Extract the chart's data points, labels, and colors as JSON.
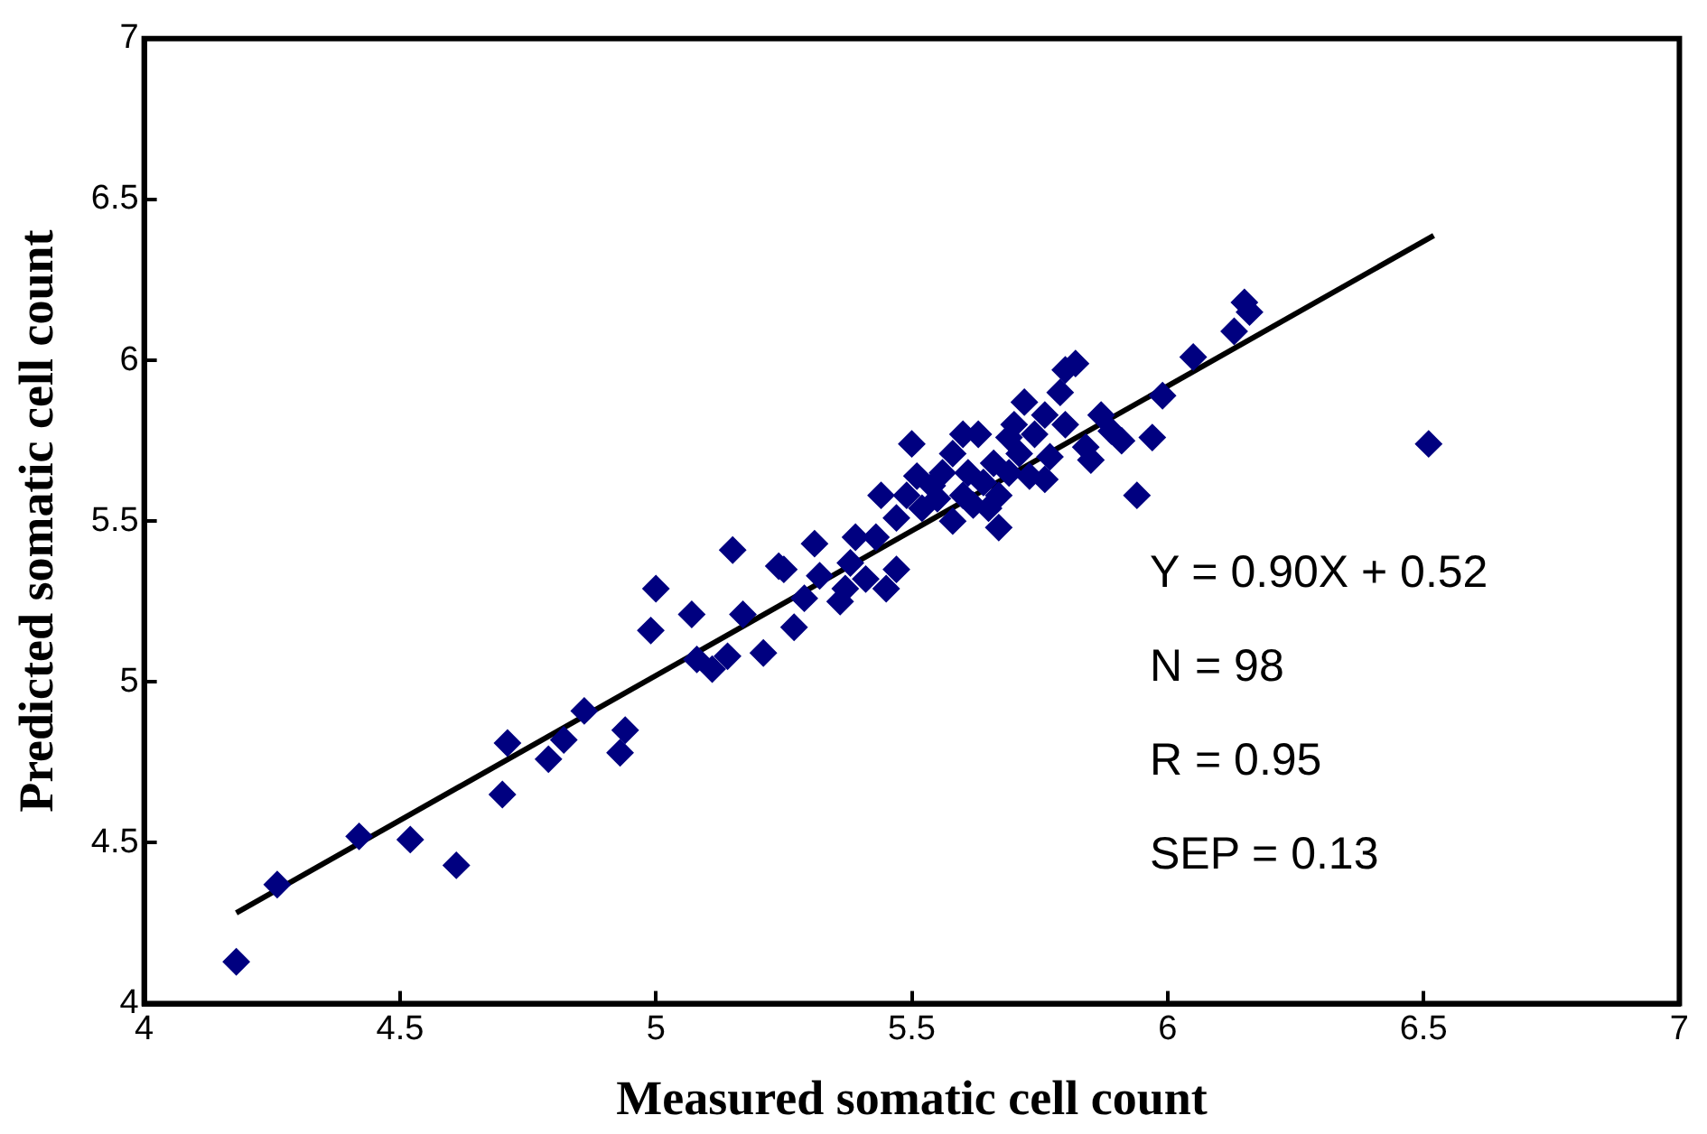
{
  "chart_data": {
    "type": "scatter",
    "xlabel": "Measured somatic cell count",
    "ylabel": "Predicted somatic cell count",
    "xlim": [
      4,
      7
    ],
    "ylim": [
      4,
      7
    ],
    "xticks": [
      4,
      4.5,
      5,
      5.5,
      6,
      6.5,
      7
    ],
    "yticks": [
      4,
      4.5,
      5,
      5.5,
      6,
      6.5,
      7
    ],
    "grid": false,
    "legend": false,
    "marker": "diamond",
    "annotations": [
      "Y = 0.90X + 0.52",
      "N = 98",
      "R = 0.95",
      "SEP = 0.13"
    ],
    "series": [
      {
        "color": "#000080",
        "x": [
          4.18,
          4.26,
          4.42,
          4.52,
          4.61,
          4.7,
          4.71,
          4.79,
          4.82,
          4.86,
          4.93,
          4.94,
          4.99,
          5.0,
          5.07,
          5.08,
          5.11,
          5.14,
          5.15,
          5.17,
          5.21,
          5.24,
          5.25,
          5.27,
          5.29,
          5.31,
          5.32,
          5.36,
          5.37,
          5.38,
          5.39,
          5.41,
          5.43,
          5.44,
          5.45,
          5.47,
          5.47,
          5.49,
          5.5,
          5.51,
          5.52,
          5.54,
          5.55,
          5.56,
          5.58,
          5.58,
          5.6,
          5.61,
          5.62,
          5.63,
          5.64,
          5.65,
          5.66,
          5.67,
          5.69,
          5.69,
          5.7,
          5.71,
          5.72,
          5.73,
          5.74,
          5.76,
          5.77,
          5.79,
          5.8,
          5.8,
          5.82,
          5.84,
          5.85,
          5.87,
          5.89,
          5.91,
          5.94,
          5.97,
          5.99,
          6.05,
          6.13,
          6.15,
          6.16,
          6.51,
          5.6,
          5.67,
          5.76
        ],
        "values": [
          4.13,
          4.37,
          4.52,
          4.51,
          4.43,
          4.65,
          4.81,
          4.76,
          4.82,
          4.91,
          4.78,
          4.85,
          5.16,
          5.29,
          5.21,
          5.07,
          5.04,
          5.08,
          5.41,
          5.21,
          5.09,
          5.36,
          5.35,
          5.17,
          5.26,
          5.43,
          5.33,
          5.25,
          5.29,
          5.37,
          5.45,
          5.32,
          5.45,
          5.58,
          5.29,
          5.35,
          5.51,
          5.58,
          5.74,
          5.64,
          5.54,
          5.61,
          5.57,
          5.65,
          5.5,
          5.71,
          5.58,
          5.65,
          5.55,
          5.77,
          5.62,
          5.54,
          5.68,
          5.58,
          5.65,
          5.76,
          5.8,
          5.71,
          5.87,
          5.64,
          5.77,
          5.83,
          5.7,
          5.9,
          5.8,
          5.97,
          5.99,
          5.73,
          5.69,
          5.83,
          5.78,
          5.75,
          5.58,
          5.76,
          5.89,
          6.01,
          6.09,
          6.18,
          6.15,
          5.74,
          5.77,
          5.48,
          5.63
        ]
      },
      {
        "type": "line",
        "color": "#000000",
        "x": [
          4.18,
          6.52
        ],
        "values": [
          4.282,
          6.388
        ],
        "marker": "none",
        "line_style": "solid"
      }
    ]
  }
}
